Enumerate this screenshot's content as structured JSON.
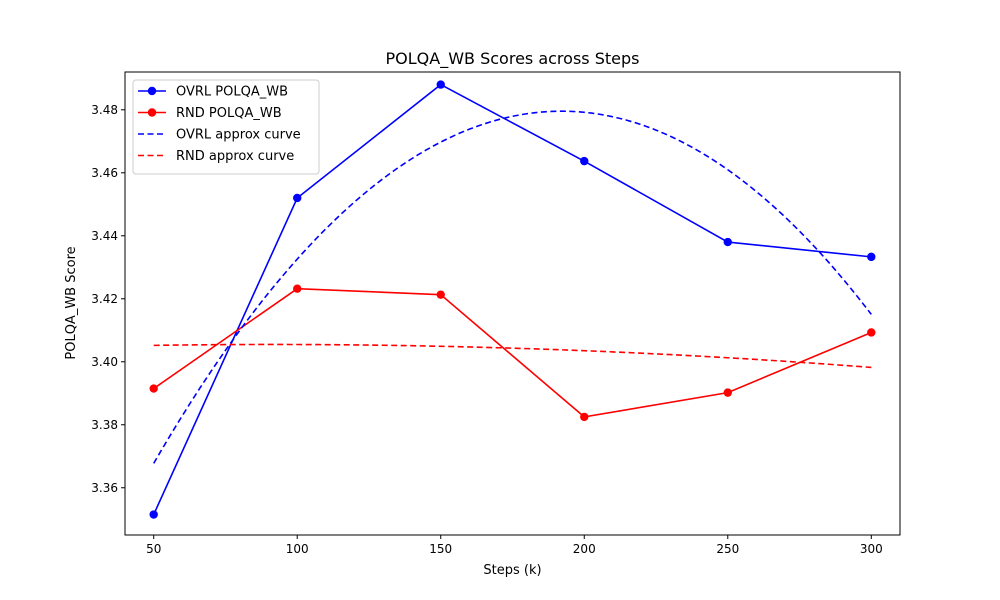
{
  "chart_data": {
    "type": "line",
    "title": "POLQA_WB Scores across Steps",
    "xlabel": "Steps (k)",
    "ylabel": "POLQA_WB Score",
    "x": [
      50,
      100,
      150,
      200,
      250,
      300
    ],
    "xlim": [
      40,
      310
    ],
    "ylim": [
      3.345,
      3.492
    ],
    "xticks": [
      50,
      100,
      150,
      200,
      250,
      300
    ],
    "yticks": [
      3.36,
      3.38,
      3.4,
      3.42,
      3.44,
      3.46,
      3.48
    ],
    "grid": false,
    "legend_position": "top-left",
    "series": [
      {
        "name": "OVRL POLQA_WB",
        "style": "solid",
        "marker": true,
        "color": "#0000ff",
        "values": [
          3.3515,
          3.452,
          3.488,
          3.4637,
          3.438,
          3.4333
        ]
      },
      {
        "name": "RND POLQA_WB",
        "style": "solid",
        "marker": true,
        "color": "#ff0000",
        "values": [
          3.3915,
          3.4232,
          3.4213,
          3.3825,
          3.3902,
          3.4093
        ]
      },
      {
        "name": "OVRL approx curve",
        "style": "dashed",
        "marker": false,
        "color": "#0000ff",
        "curve": "quadratic",
        "values": [
          3.3675,
          3.4326,
          3.4704,
          3.4796,
          3.4594,
          3.4158
        ]
      },
      {
        "name": "RND approx curve",
        "style": "dashed",
        "marker": false,
        "color": "#ff0000",
        "curve": "quadratic",
        "values": [
          3.4052,
          3.4055,
          3.4049,
          3.4035,
          3.4013,
          3.3982
        ]
      }
    ]
  }
}
